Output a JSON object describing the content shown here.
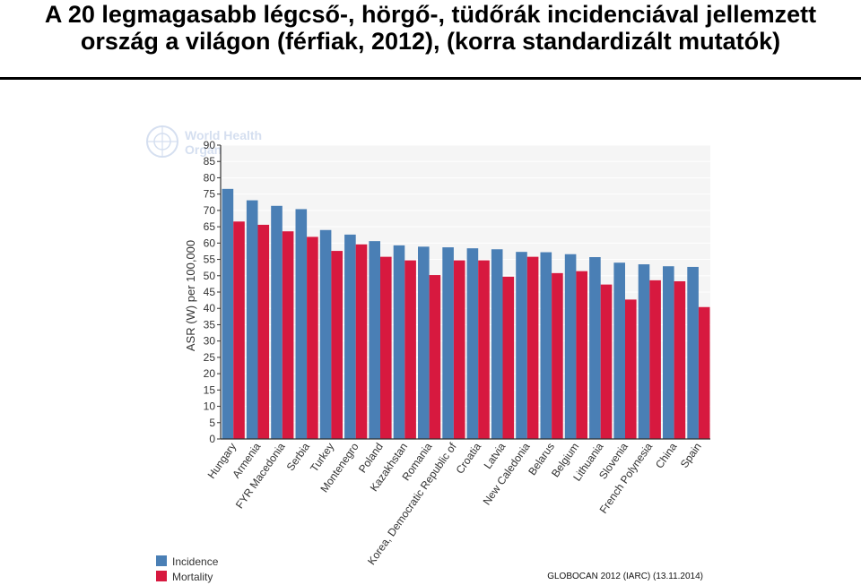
{
  "title_lines": [
    "A 20 legmagasabb légcső-, hörgő-, tüdőrák incidenciával jellemzett",
    "ország a világon (férfiak, 2012), (korra standardizált mutatók)"
  ],
  "watermark": {
    "line1": "World Health",
    "line2": "Organization",
    "icon": "who-emblem-icon"
  },
  "source": "GLOBOCAN 2012 (IARC) (13.11.2014)",
  "colors": {
    "incidence": "#4A7FB5",
    "mortality": "#D7193F",
    "plot_bg": "#F5F5F5",
    "grid": "#FFFFFF"
  },
  "chart_data": {
    "type": "bar",
    "ylabel": "ASR (W) per 100,000",
    "ylim": [
      0,
      90
    ],
    "yticks": [
      0,
      5,
      10,
      15,
      20,
      25,
      30,
      35,
      40,
      45,
      50,
      55,
      60,
      65,
      70,
      75,
      80,
      85,
      90
    ],
    "grid": true,
    "legend_position": "bottom-left",
    "categories": [
      "Hungary",
      "Armenia",
      "FYR Macedonia",
      "Serbia",
      "Turkey",
      "Montenegro",
      "Poland",
      "Kazakhstan",
      "Romania",
      "Korea, Democratic Republic of",
      "Croatia",
      "Latvia",
      "New Caledonia",
      "Belarus",
      "Belgium",
      "Lithuania",
      "Slovenia",
      "French Polynesia",
      "China",
      "Spain"
    ],
    "series": [
      {
        "name": "Incidence",
        "values": [
          76.6,
          73.1,
          71.4,
          70.4,
          64.0,
          62.6,
          60.6,
          59.3,
          58.9,
          58.7,
          58.4,
          58.1,
          57.3,
          57.2,
          56.6,
          55.7,
          54.0,
          53.5,
          52.9,
          52.7
        ]
      },
      {
        "name": "Mortality",
        "values": [
          66.6,
          65.6,
          63.6,
          61.9,
          57.6,
          59.6,
          55.8,
          54.7,
          50.2,
          54.7,
          54.7,
          49.7,
          55.8,
          50.8,
          51.4,
          47.3,
          42.7,
          48.6,
          48.3,
          40.4
        ]
      }
    ]
  }
}
